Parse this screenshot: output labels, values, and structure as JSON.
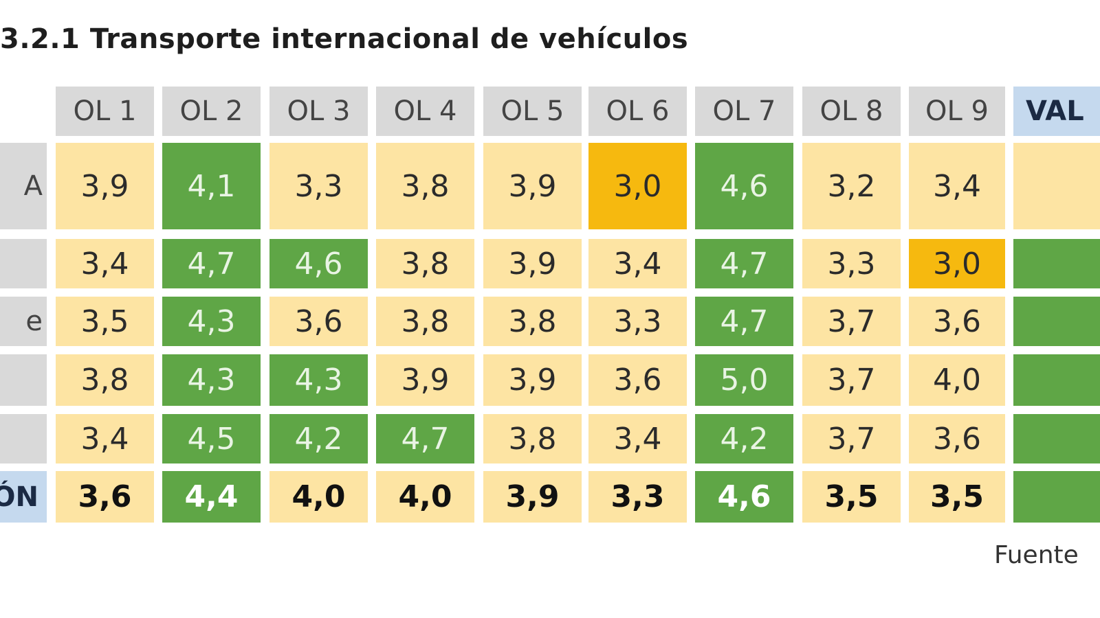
{
  "chart_data": {
    "type": "table",
    "title": "3.2.1 Transporte internacional de vehículos",
    "columns": [
      "OL 1",
      "OL 2",
      "OL 3",
      "OL 4",
      "OL 5",
      "OL 6",
      "OL 7",
      "OL 8",
      "OL 9",
      "VAL"
    ],
    "rows": [
      {
        "label": "A",
        "values": [
          "3,9",
          "4,1",
          "3,3",
          "3,8",
          "3,9",
          "3,0",
          "4,6",
          "3,2",
          "3,4",
          ""
        ]
      },
      {
        "label": "",
        "values": [
          "3,4",
          "4,7",
          "4,6",
          "3,8",
          "3,9",
          "3,4",
          "4,7",
          "3,3",
          "3,0",
          ""
        ]
      },
      {
        "label": "e",
        "values": [
          "3,5",
          "4,3",
          "3,6",
          "3,8",
          "3,8",
          "3,3",
          "4,7",
          "3,7",
          "3,6",
          ""
        ]
      },
      {
        "label": "",
        "values": [
          "3,8",
          "4,3",
          "4,3",
          "3,9",
          "3,9",
          "3,6",
          "5,0",
          "3,7",
          "4,0",
          ""
        ]
      },
      {
        "label": "",
        "values": [
          "3,4",
          "4,5",
          "4,2",
          "4,7",
          "3,8",
          "3,4",
          "4,2",
          "3,7",
          "3,6",
          ""
        ]
      },
      {
        "label": "ÓN",
        "values": [
          "3,6",
          "4,4",
          "4,0",
          "4,0",
          "3,9",
          "3,3",
          "4,6",
          "3,5",
          "3,5",
          ""
        ]
      }
    ],
    "cell_colors": [
      [
        "yellow",
        "green",
        "yellow",
        "yellow",
        "yellow",
        "orange",
        "green",
        "yellow",
        "yellow",
        "yellow"
      ],
      [
        "yellow",
        "green",
        "green",
        "yellow",
        "yellow",
        "yellow",
        "green",
        "yellow",
        "orange",
        "green"
      ],
      [
        "yellow",
        "green",
        "yellow",
        "yellow",
        "yellow",
        "yellow",
        "green",
        "yellow",
        "yellow",
        "green"
      ],
      [
        "yellow",
        "green",
        "green",
        "yellow",
        "yellow",
        "yellow",
        "green",
        "yellow",
        "yellow",
        "green"
      ],
      [
        "yellow",
        "green",
        "green",
        "green",
        "yellow",
        "yellow",
        "green",
        "yellow",
        "yellow",
        "green"
      ],
      [
        "yellow",
        "green",
        "yellow",
        "yellow",
        "yellow",
        "yellow",
        "green",
        "yellow",
        "yellow",
        "green"
      ]
    ],
    "colors": {
      "yellow": "#fde4a3",
      "green": "#5fa646",
      "orange": "#f6b90f",
      "header": "#d9d9d9",
      "header_val": "#c5d9ee"
    }
  },
  "header": {
    "val_label": "VAL"
  },
  "footer": {
    "source": "Fuente"
  }
}
